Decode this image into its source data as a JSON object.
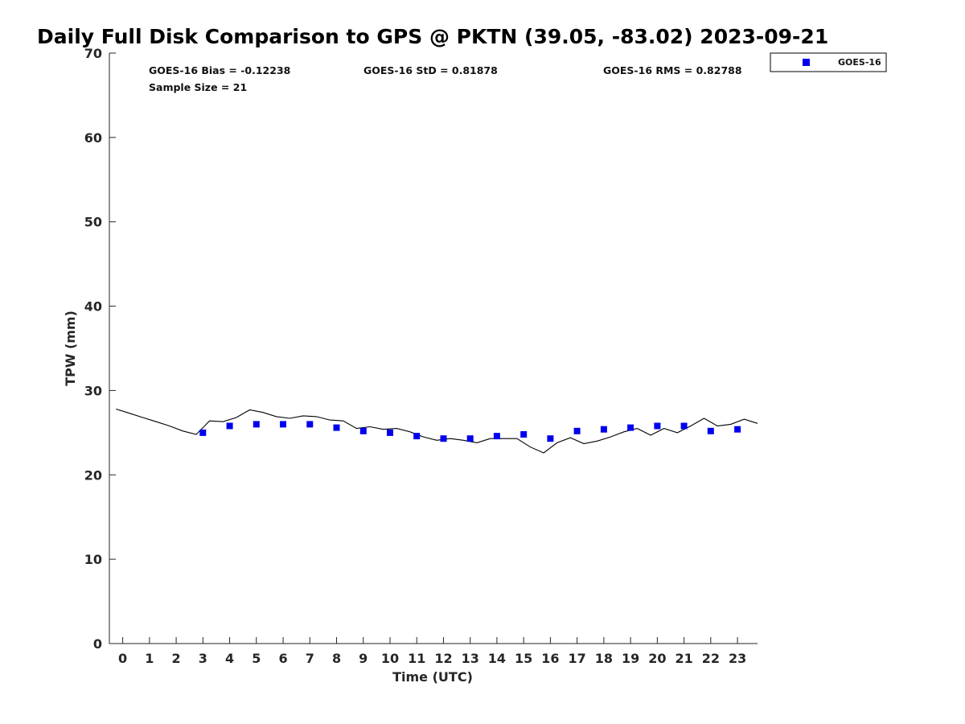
{
  "chart_data": {
    "type": "scatter",
    "title": "Daily Full Disk Comparison to GPS @ PKTN (39.05, -83.02) 2023-09-21",
    "xlabel": "Time (UTC)",
    "ylabel": "TPW (mm)",
    "xlim": [
      -0.5,
      23.75
    ],
    "ylim": [
      0,
      70
    ],
    "xticks": [
      "0",
      "1",
      "2",
      "3",
      "4",
      "5",
      "6",
      "7",
      "8",
      "9",
      "10",
      "11",
      "12",
      "13",
      "14",
      "15",
      "16",
      "17",
      "18",
      "19",
      "20",
      "21",
      "22",
      "23"
    ],
    "yticks": [
      "0",
      "10",
      "20",
      "30",
      "40",
      "50",
      "60",
      "70"
    ],
    "grid": false,
    "legend_position": "top-right, outside plot",
    "stats": {
      "bias": "GOES-16 Bias = -0.12238",
      "std": "GOES-16 StD = 0.81878",
      "rms": "GOES-16 RMS = 0.82788",
      "sample_size": "Sample Size = 21"
    },
    "series": [
      {
        "name": "GOES-16",
        "kind": "markers",
        "marker": "square",
        "color": "#0000ee",
        "x": [
          3,
          4,
          5,
          6,
          7,
          8,
          9,
          10,
          11,
          12,
          13,
          14,
          15,
          16,
          17,
          18,
          19,
          20,
          21,
          22,
          23
        ],
        "y": [
          25.0,
          25.8,
          26.0,
          26.0,
          26.0,
          25.6,
          25.2,
          25.0,
          24.6,
          24.3,
          24.3,
          24.6,
          24.8,
          24.3,
          25.2,
          25.4,
          25.6,
          25.8,
          25.8,
          25.2,
          25.4
        ]
      },
      {
        "kind": "line",
        "color": "#000000",
        "x": [
          -0.25,
          0.25,
          0.75,
          1.25,
          1.75,
          2.25,
          2.75,
          3.25,
          3.75,
          4.25,
          4.75,
          5.25,
          5.75,
          6.25,
          6.75,
          7.25,
          7.75,
          8.25,
          8.75,
          9.25,
          9.75,
          10.25,
          10.75,
          11.25,
          11.75,
          12.25,
          12.75,
          13.25,
          13.75,
          14.25,
          14.75,
          15.25,
          15.75,
          16.25,
          16.75,
          17.25,
          17.75,
          18.25,
          18.75,
          19.25,
          19.75,
          20.25,
          20.75,
          21.25,
          21.75,
          22.25,
          22.75,
          23.25,
          23.75
        ],
        "y": [
          27.8,
          27.3,
          26.8,
          26.3,
          25.8,
          25.2,
          24.8,
          26.4,
          26.3,
          26.8,
          27.7,
          27.4,
          26.9,
          26.7,
          27.0,
          26.9,
          26.5,
          26.4,
          25.5,
          25.7,
          25.4,
          25.5,
          25.1,
          24.5,
          24.1,
          24.3,
          24.1,
          23.8,
          24.3,
          24.3,
          24.3,
          23.3,
          22.6,
          23.8,
          24.4,
          23.7,
          24.0,
          24.5,
          25.1,
          25.5,
          24.7,
          25.5,
          25.0,
          25.8,
          26.7,
          25.8,
          26.0,
          26.6,
          26.1
        ]
      }
    ]
  }
}
